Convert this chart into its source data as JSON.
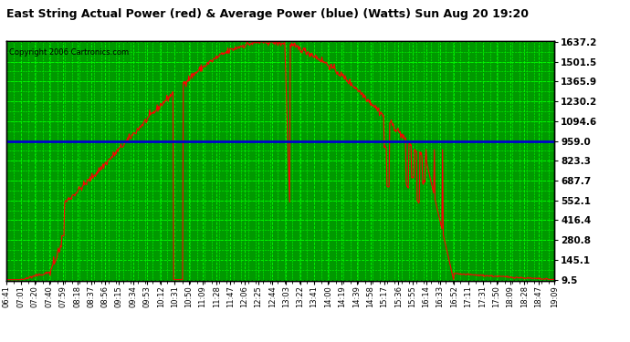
{
  "title": "East String Actual Power (red) & Average Power (blue) (Watts) Sun Aug 20 19:20",
  "copyright": "Copyright 2006 Cartronics.com",
  "average_power": 959.0,
  "yticks": [
    9.5,
    145.1,
    280.8,
    416.4,
    552.1,
    687.7,
    823.3,
    959.0,
    1094.6,
    1230.2,
    1365.9,
    1501.5,
    1637.2
  ],
  "ymin": 9.5,
  "ymax": 1637.2,
  "plot_bg": "#009900",
  "fig_bg": "#ffffff",
  "red_color": "#ff0000",
  "blue_color": "#0000cc",
  "grid_color": "#00ff00",
  "xtick_labels": [
    "06:41",
    "07:01",
    "07:20",
    "07:40",
    "07:59",
    "08:18",
    "08:37",
    "08:56",
    "09:15",
    "09:34",
    "09:53",
    "10:12",
    "10:31",
    "10:50",
    "11:09",
    "11:28",
    "11:47",
    "12:06",
    "12:25",
    "12:44",
    "13:03",
    "13:22",
    "13:41",
    "14:00",
    "14:19",
    "14:39",
    "14:58",
    "15:17",
    "15:36",
    "15:55",
    "16:14",
    "16:33",
    "16:52",
    "17:11",
    "17:31",
    "17:50",
    "18:09",
    "18:28",
    "18:47",
    "19:09"
  ]
}
